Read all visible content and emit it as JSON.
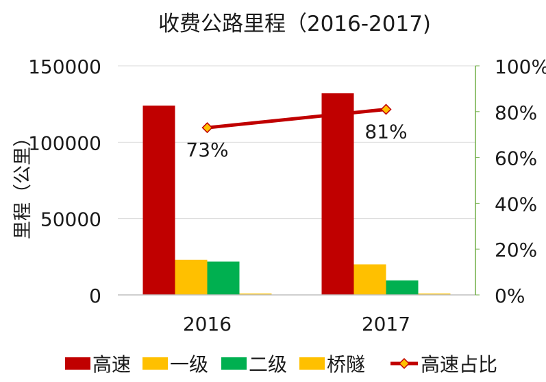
{
  "chart_data": {
    "type": "bar",
    "title": "收费公路里程（2016-2017)",
    "ylabel": "里程（公里）",
    "xlabel": "",
    "categories": [
      "2016",
      "2017"
    ],
    "ylim": [
      0,
      150000
    ],
    "yticks": [
      "0",
      "50000",
      "100000",
      "150000"
    ],
    "y2lim": [
      0,
      100
    ],
    "y2ticks": [
      "0%",
      "20%",
      "40%",
      "60%",
      "80%",
      "100%"
    ],
    "grid": true,
    "legend_position": "bottom",
    "series": [
      {
        "name": "高速",
        "kind": "bar",
        "color": "#C00000",
        "values": [
          124000,
          132000
        ]
      },
      {
        "name": "一级",
        "kind": "bar",
        "color": "#FFC000",
        "values": [
          23000,
          20000
        ]
      },
      {
        "name": "二级",
        "kind": "bar",
        "color": "#00B050",
        "values": [
          21800,
          9500
        ]
      },
      {
        "name": "桥隧",
        "kind": "bar",
        "color": "#FFC000",
        "values": [
          900,
          900
        ]
      },
      {
        "name": "高速占比",
        "kind": "line",
        "axis": "right",
        "color": "#C00000",
        "marker_color": "#FFC000",
        "values": [
          73,
          81
        ],
        "labels": [
          "73%",
          "81%"
        ]
      }
    ]
  }
}
